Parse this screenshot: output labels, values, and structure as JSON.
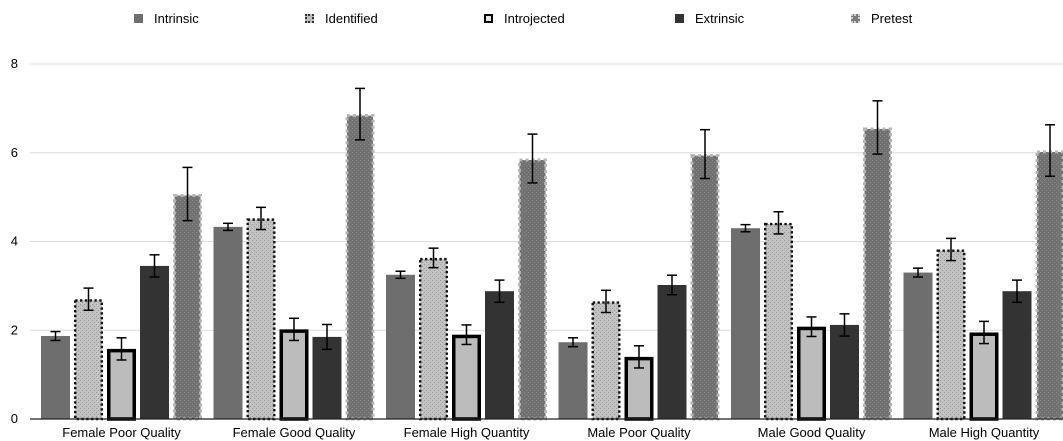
{
  "chart_data": {
    "type": "bar",
    "categories": [
      "Female Poor Quality",
      "Female Good Quality",
      "Female High Quantity",
      "Male Poor Quality",
      "Male Good Quality",
      "Male High Quantity"
    ],
    "series": [
      {
        "name": "Intrinsic",
        "values": [
          1.87,
          4.33,
          3.25,
          1.73,
          4.3,
          3.3
        ],
        "error": [
          0.1,
          0.08,
          0.08,
          0.1,
          0.08,
          0.1
        ],
        "color": "#6e6e6e",
        "style": "solid"
      },
      {
        "name": "Identified",
        "values": [
          2.7,
          4.52,
          3.63,
          2.65,
          4.42,
          3.82
        ],
        "error": [
          0.25,
          0.25,
          0.22,
          0.25,
          0.25,
          0.25
        ],
        "color": "#bdbdbd",
        "style": "dotted-outline"
      },
      {
        "name": "Introjected",
        "values": [
          1.58,
          2.02,
          1.9,
          1.4,
          2.08,
          1.95
        ],
        "error": [
          0.25,
          0.25,
          0.22,
          0.25,
          0.22,
          0.25
        ],
        "color": "#bcbcbc",
        "style": "black-outline"
      },
      {
        "name": "Extrinsic",
        "values": [
          3.45,
          1.85,
          2.88,
          3.02,
          2.12,
          2.88
        ],
        "error": [
          0.25,
          0.28,
          0.25,
          0.22,
          0.25,
          0.25
        ],
        "color": "#333333",
        "style": "solid"
      },
      {
        "name": "Pretest",
        "values": [
          5.07,
          6.87,
          5.87,
          5.97,
          6.57,
          6.05
        ],
        "error": [
          0.6,
          0.58,
          0.55,
          0.55,
          0.6,
          0.58
        ],
        "color": "#6e6e6e",
        "style": "light-dotted-outline"
      }
    ],
    "yticks": [
      0,
      2,
      4,
      6,
      8
    ],
    "ylim": [
      0,
      8
    ],
    "grid": true,
    "legend_position": "top",
    "title": "",
    "xlabel": "",
    "ylabel": ""
  }
}
